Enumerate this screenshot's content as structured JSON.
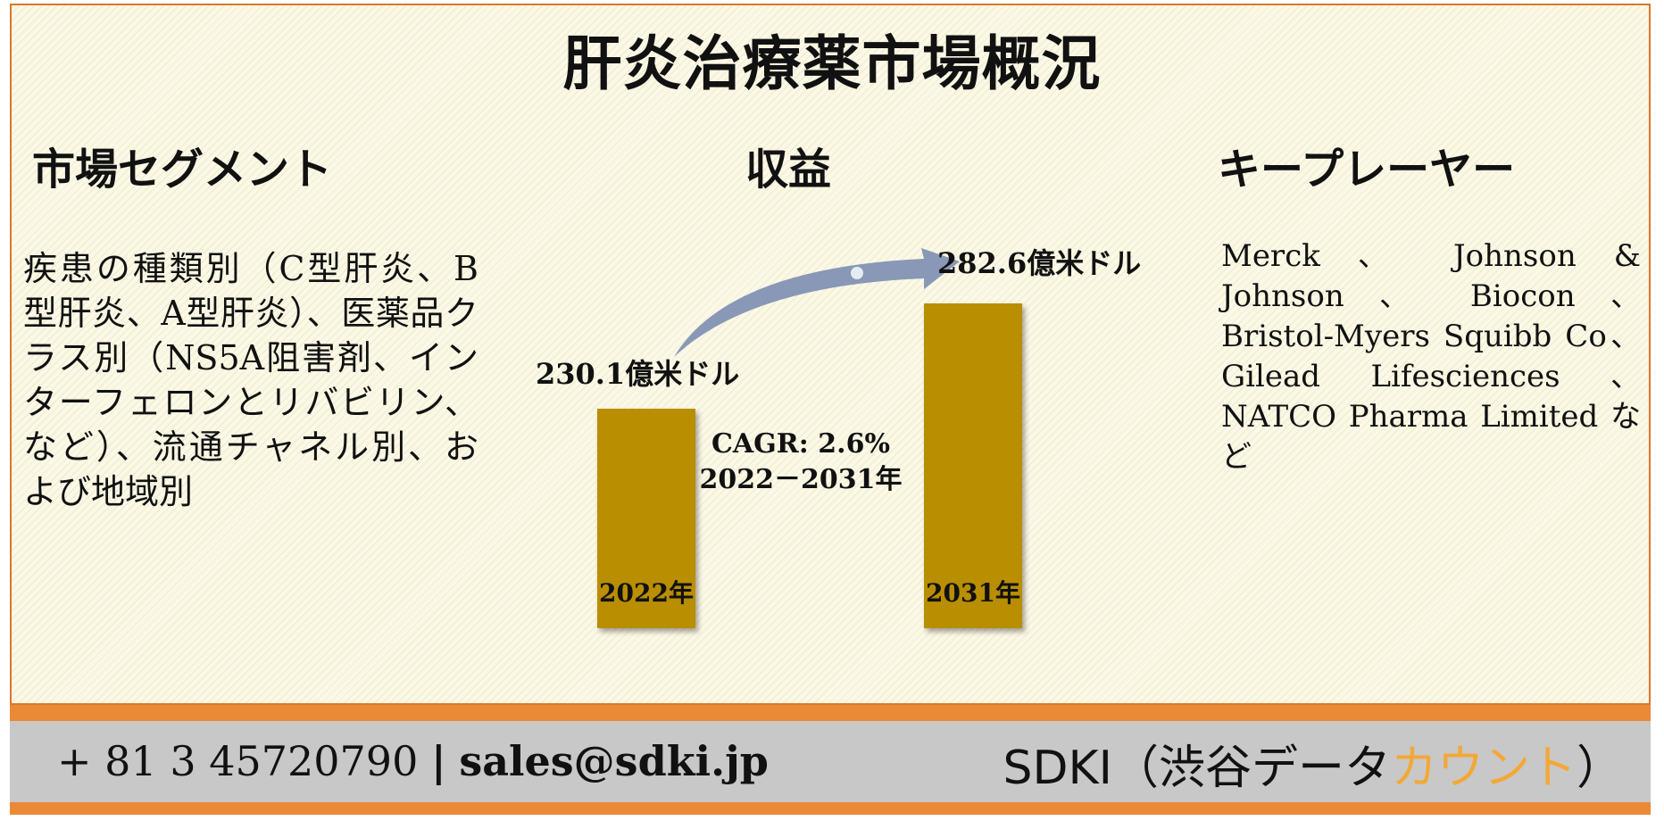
{
  "title": "肝炎治療薬市場概況",
  "columns": {
    "segment_heading": "市場セグメント",
    "revenue_heading": "収益",
    "players_heading": "キープレーヤー"
  },
  "segment_text": "疾患の種類別（C型肝炎、B型肝炎、A型肝炎）、医薬品クラス別（NS5A阻害剤、インターフェロンとリバビリン、など）、流通チャネル別、および地域別",
  "players_text": "Merck 、 Johnson & Johnson 、 Biocon 、Bristol-Myers Squibb Co、Gilead Lifesciences 、NATCO Pharma Limited など",
  "chart_data": {
    "type": "bar",
    "categories": [
      "2022年",
      "2031年"
    ],
    "values": [
      230.1,
      282.6
    ],
    "value_labels": [
      "230.1億米ドル",
      "282.6億米ドル"
    ],
    "annotation_line1": "CAGR: 2.6%",
    "annotation_line2": "2022－2031年",
    "bar_color": "#b98e00",
    "arrow_color": "#8898b6"
  },
  "footer": {
    "phone": "+ 81 3 45720790",
    "separator": "|",
    "email": "sales@sdki.jp",
    "brand_prefix": "SDKI（渋谷デ",
    "brand_mid": "ータ",
    "brand_accent": "カウント",
    "brand_suffix": "）"
  },
  "colors": {
    "border": "#d9782c",
    "footer_band": "#ea8a36",
    "footer_bg": "#c8c8c8",
    "brand_accent": "#f3a836"
  }
}
